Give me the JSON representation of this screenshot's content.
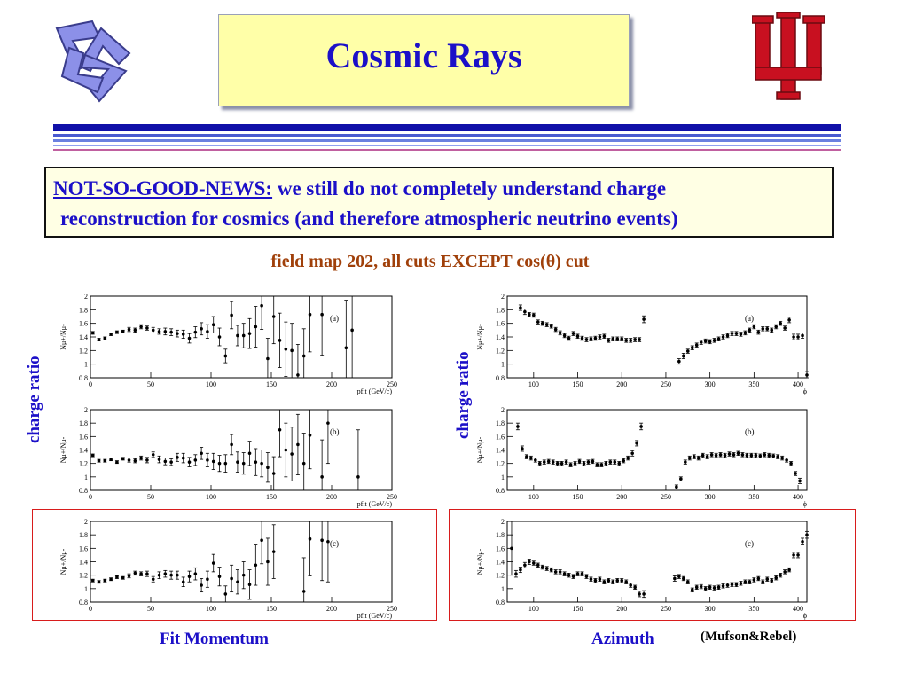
{
  "title": "Cosmic Rays",
  "colors": {
    "title_blue": "#1c10c8",
    "subtitle_brown": "#a0400a",
    "title_box": "#ffffa8",
    "iu_red": "#c81020",
    "frame_red": "#d81c1c"
  },
  "logos": {
    "left": "blue-twisted-triangle-icon",
    "right": "iu-trident-logo"
  },
  "news": {
    "heading": "NOT-SO-GOOD-NEWS:",
    "line1": "we still do not completely understand charge",
    "line2": "reconstruction for cosmics (and therefore atmospheric neutrino events)"
  },
  "subtitle": "field map 202, all cuts EXCEPT cos(θ) cut",
  "left_column": {
    "side_label": "charge ratio",
    "caption": "Fit Momentum"
  },
  "right_column": {
    "side_label": "charge ratio",
    "caption": "Azimuth"
  },
  "credit": "(Mufson&Rebel)",
  "chart_data": [
    {
      "type": "scatter",
      "panel": "(a)",
      "ylabel": "Nμ+/Nμ-",
      "xlabel": "pfit (GeV/c)",
      "xlim": [
        0,
        250
      ],
      "ylim": [
        0.8,
        2
      ],
      "xticks": [
        0,
        50,
        100,
        150,
        200,
        250
      ],
      "yticks": [
        0.8,
        1,
        1.2,
        1.4,
        1.6,
        1.8,
        2
      ],
      "x": [
        2,
        7,
        12,
        17,
        22,
        27,
        32,
        37,
        42,
        47,
        52,
        57,
        62,
        67,
        72,
        77,
        82,
        87,
        92,
        97,
        102,
        107,
        112,
        117,
        122,
        127,
        132,
        137,
        142,
        147,
        152,
        157,
        162,
        167,
        172,
        177,
        182,
        192,
        212,
        217
      ],
      "y": [
        1.46,
        1.36,
        1.38,
        1.44,
        1.47,
        1.48,
        1.51,
        1.5,
        1.55,
        1.53,
        1.5,
        1.48,
        1.48,
        1.47,
        1.45,
        1.44,
        1.38,
        1.47,
        1.52,
        1.48,
        1.58,
        1.4,
        1.12,
        1.72,
        1.42,
        1.42,
        1.45,
        1.55,
        1.86,
        1.08,
        1.7,
        1.35,
        1.22,
        1.2,
        0.84,
        1.12,
        1.73,
        1.73,
        1.24,
        1.5
      ],
      "err": [
        0.02,
        0.02,
        0.02,
        0.02,
        0.02,
        0.02,
        0.03,
        0.03,
        0.03,
        0.03,
        0.04,
        0.04,
        0.05,
        0.05,
        0.05,
        0.06,
        0.07,
        0.08,
        0.09,
        0.1,
        0.12,
        0.13,
        0.1,
        0.2,
        0.15,
        0.18,
        0.22,
        0.3,
        0.35,
        0.3,
        0.4,
        0.4,
        0.4,
        0.4,
        0.45,
        0.4,
        0.55,
        0.6,
        0.7,
        0.7
      ]
    },
    {
      "type": "scatter",
      "panel": "(b)",
      "ylabel": "Nμ+/Nμ-",
      "xlabel": "pfit (GeV/c)",
      "xlim": [
        0,
        250
      ],
      "ylim": [
        0.8,
        2
      ],
      "xticks": [
        0,
        50,
        100,
        150,
        200,
        250
      ],
      "yticks": [
        0.8,
        1,
        1.2,
        1.4,
        1.6,
        1.8,
        2
      ],
      "x": [
        2,
        7,
        12,
        17,
        22,
        27,
        32,
        37,
        42,
        47,
        52,
        57,
        62,
        67,
        72,
        77,
        82,
        87,
        92,
        97,
        102,
        107,
        112,
        117,
        122,
        127,
        132,
        137,
        142,
        147,
        152,
        157,
        162,
        167,
        172,
        177,
        182,
        192,
        197,
        222
      ],
      "y": [
        1.32,
        1.24,
        1.24,
        1.26,
        1.22,
        1.27,
        1.25,
        1.24,
        1.28,
        1.25,
        1.33,
        1.26,
        1.23,
        1.22,
        1.29,
        1.28,
        1.22,
        1.25,
        1.35,
        1.25,
        1.23,
        1.2,
        1.2,
        1.48,
        1.22,
        1.2,
        1.35,
        1.22,
        1.2,
        1.14,
        1.05,
        1.7,
        1.4,
        1.34,
        1.48,
        1.2,
        1.62,
        1.0,
        1.8,
        1.0
      ],
      "err": [
        0.02,
        0.02,
        0.02,
        0.02,
        0.02,
        0.02,
        0.03,
        0.03,
        0.03,
        0.04,
        0.04,
        0.05,
        0.05,
        0.05,
        0.06,
        0.07,
        0.07,
        0.08,
        0.09,
        0.1,
        0.12,
        0.12,
        0.13,
        0.15,
        0.15,
        0.16,
        0.18,
        0.2,
        0.2,
        0.22,
        0.25,
        0.4,
        0.4,
        0.4,
        0.45,
        0.45,
        0.5,
        0.55,
        0.6,
        0.7
      ]
    },
    {
      "type": "scatter",
      "panel": "(c)",
      "ylabel": "Nμ+/Nμ-",
      "xlabel": "pfit (GeV/c)",
      "xlim": [
        0,
        250
      ],
      "ylim": [
        0.8,
        2
      ],
      "xticks": [
        0,
        50,
        100,
        150,
        200,
        250
      ],
      "yticks": [
        0.8,
        1,
        1.2,
        1.4,
        1.6,
        1.8,
        2
      ],
      "x": [
        2,
        7,
        12,
        17,
        22,
        27,
        32,
        37,
        42,
        47,
        52,
        57,
        62,
        67,
        72,
        77,
        82,
        87,
        92,
        97,
        102,
        107,
        112,
        117,
        122,
        127,
        132,
        137,
        142,
        147,
        152,
        177,
        182,
        192,
        197
      ],
      "y": [
        1.12,
        1.1,
        1.12,
        1.14,
        1.17,
        1.16,
        1.19,
        1.23,
        1.22,
        1.22,
        1.14,
        1.2,
        1.22,
        1.2,
        1.2,
        1.1,
        1.18,
        1.22,
        1.05,
        1.14,
        1.38,
        1.18,
        0.92,
        1.15,
        1.1,
        1.2,
        1.06,
        1.35,
        1.72,
        1.4,
        1.55,
        0.96,
        1.74,
        1.72,
        1.7
      ],
      "err": [
        0.02,
        0.02,
        0.02,
        0.02,
        0.02,
        0.02,
        0.03,
        0.03,
        0.03,
        0.04,
        0.04,
        0.05,
        0.05,
        0.06,
        0.06,
        0.07,
        0.08,
        0.09,
        0.1,
        0.12,
        0.13,
        0.14,
        0.12,
        0.2,
        0.18,
        0.2,
        0.22,
        0.3,
        0.35,
        0.35,
        0.4,
        0.5,
        0.55,
        0.6,
        0.6
      ]
    },
    {
      "type": "scatter",
      "panel": "(a)",
      "ylabel": "Nμ+/Nμ-",
      "xlabel": "ϕ",
      "xlim": [
        70,
        410
      ],
      "ylim": [
        0.8,
        2
      ],
      "xticks": [
        100,
        150,
        200,
        250,
        300,
        350,
        400
      ],
      "yticks": [
        0.8,
        1,
        1.2,
        1.4,
        1.6,
        1.8,
        2
      ],
      "x": [
        85,
        90,
        95,
        100,
        105,
        110,
        115,
        120,
        125,
        130,
        135,
        140,
        145,
        150,
        155,
        160,
        165,
        170,
        175,
        180,
        185,
        190,
        195,
        200,
        205,
        210,
        215,
        220,
        225,
        265,
        270,
        275,
        280,
        285,
        290,
        295,
        300,
        305,
        310,
        315,
        320,
        325,
        330,
        335,
        340,
        345,
        350,
        355,
        360,
        365,
        370,
        375,
        380,
        385,
        390,
        395,
        400,
        405,
        410
      ],
      "y": [
        1.83,
        1.77,
        1.73,
        1.72,
        1.62,
        1.6,
        1.58,
        1.56,
        1.51,
        1.46,
        1.42,
        1.38,
        1.45,
        1.41,
        1.38,
        1.36,
        1.37,
        1.38,
        1.4,
        1.41,
        1.35,
        1.37,
        1.37,
        1.37,
        1.35,
        1.35,
        1.36,
        1.36,
        1.66,
        1.04,
        1.12,
        1.19,
        1.24,
        1.28,
        1.32,
        1.34,
        1.33,
        1.35,
        1.37,
        1.4,
        1.42,
        1.45,
        1.45,
        1.44,
        1.46,
        1.5,
        1.55,
        1.47,
        1.52,
        1.52,
        1.5,
        1.55,
        1.6,
        1.53,
        1.65,
        1.4,
        1.4,
        1.42,
        0.84
      ],
      "err": [
        0.04,
        0.04,
        0.03,
        0.03,
        0.03,
        0.03,
        0.03,
        0.03,
        0.03,
        0.03,
        0.03,
        0.03,
        0.03,
        0.03,
        0.03,
        0.03,
        0.03,
        0.03,
        0.03,
        0.03,
        0.03,
        0.03,
        0.03,
        0.03,
        0.03,
        0.03,
        0.03,
        0.03,
        0.05,
        0.04,
        0.04,
        0.03,
        0.03,
        0.03,
        0.03,
        0.03,
        0.03,
        0.03,
        0.03,
        0.03,
        0.03,
        0.03,
        0.03,
        0.03,
        0.03,
        0.03,
        0.03,
        0.03,
        0.03,
        0.03,
        0.03,
        0.03,
        0.03,
        0.03,
        0.04,
        0.04,
        0.04,
        0.04,
        0.05
      ]
    },
    {
      "type": "scatter",
      "panel": "(b)",
      "ylabel": "Nμ+/Nμ-",
      "xlabel": "ϕ",
      "xlim": [
        70,
        410
      ],
      "ylim": [
        0.8,
        2
      ],
      "xticks": [
        100,
        150,
        200,
        250,
        300,
        350,
        400
      ],
      "yticks": [
        0.8,
        1,
        1.2,
        1.4,
        1.6,
        1.8,
        2
      ],
      "x": [
        82,
        87,
        92,
        97,
        102,
        107,
        112,
        117,
        122,
        127,
        132,
        137,
        142,
        147,
        152,
        157,
        162,
        167,
        172,
        177,
        182,
        187,
        192,
        197,
        202,
        207,
        212,
        217,
        222,
        262,
        267,
        272,
        277,
        282,
        287,
        292,
        297,
        302,
        307,
        312,
        317,
        322,
        327,
        332,
        337,
        342,
        347,
        352,
        357,
        362,
        367,
        372,
        377,
        382,
        387,
        392,
        397,
        402
      ],
      "y": [
        1.75,
        1.42,
        1.3,
        1.28,
        1.25,
        1.2,
        1.22,
        1.23,
        1.22,
        1.2,
        1.2,
        1.22,
        1.18,
        1.2,
        1.23,
        1.2,
        1.22,
        1.23,
        1.18,
        1.18,
        1.2,
        1.22,
        1.22,
        1.2,
        1.24,
        1.28,
        1.35,
        1.5,
        1.75,
        0.85,
        0.97,
        1.22,
        1.28,
        1.3,
        1.28,
        1.32,
        1.3,
        1.33,
        1.32,
        1.33,
        1.32,
        1.34,
        1.33,
        1.35,
        1.33,
        1.32,
        1.32,
        1.32,
        1.31,
        1.33,
        1.32,
        1.31,
        1.3,
        1.28,
        1.25,
        1.2,
        1.05,
        0.94
      ],
      "err": [
        0.05,
        0.04,
        0.03,
        0.03,
        0.03,
        0.03,
        0.03,
        0.03,
        0.03,
        0.03,
        0.03,
        0.03,
        0.03,
        0.03,
        0.03,
        0.03,
        0.03,
        0.03,
        0.03,
        0.03,
        0.03,
        0.03,
        0.03,
        0.03,
        0.03,
        0.03,
        0.04,
        0.04,
        0.05,
        0.03,
        0.03,
        0.03,
        0.03,
        0.03,
        0.03,
        0.03,
        0.03,
        0.03,
        0.03,
        0.03,
        0.03,
        0.03,
        0.03,
        0.03,
        0.03,
        0.03,
        0.03,
        0.03,
        0.03,
        0.03,
        0.03,
        0.03,
        0.03,
        0.03,
        0.03,
        0.03,
        0.03,
        0.04
      ]
    },
    {
      "type": "scatter",
      "panel": "(c)",
      "ylabel": "Nμ+/Nμ-",
      "xlabel": "ϕ",
      "xlim": [
        70,
        410
      ],
      "ylim": [
        0.8,
        2
      ],
      "xticks": [
        100,
        150,
        200,
        250,
        300,
        350,
        400
      ],
      "yticks": [
        0.8,
        1,
        1.2,
        1.4,
        1.6,
        1.8,
        2
      ],
      "x": [
        75,
        80,
        85,
        90,
        95,
        100,
        105,
        110,
        115,
        120,
        125,
        130,
        135,
        140,
        145,
        150,
        155,
        160,
        165,
        170,
        175,
        180,
        185,
        190,
        195,
        200,
        205,
        210,
        215,
        220,
        225,
        260,
        265,
        270,
        275,
        280,
        285,
        290,
        295,
        300,
        305,
        310,
        315,
        320,
        325,
        330,
        335,
        340,
        345,
        350,
        355,
        360,
        365,
        370,
        375,
        380,
        385,
        390,
        395,
        400,
        405,
        410
      ],
      "y": [
        1.6,
        1.22,
        1.28,
        1.35,
        1.4,
        1.38,
        1.35,
        1.32,
        1.3,
        1.28,
        1.25,
        1.25,
        1.22,
        1.2,
        1.18,
        1.22,
        1.22,
        1.18,
        1.14,
        1.12,
        1.14,
        1.1,
        1.12,
        1.1,
        1.12,
        1.12,
        1.1,
        1.05,
        1.02,
        0.92,
        0.92,
        1.15,
        1.18,
        1.15,
        1.1,
        0.98,
        1.02,
        1.03,
        1.0,
        1.02,
        1.01,
        1.02,
        1.04,
        1.05,
        1.06,
        1.06,
        1.08,
        1.1,
        1.1,
        1.13,
        1.15,
        1.1,
        1.14,
        1.12,
        1.16,
        1.2,
        1.25,
        1.28,
        1.5,
        1.5,
        1.7,
        1.8
      ],
      "err": [
        0.4,
        0.05,
        0.04,
        0.04,
        0.04,
        0.03,
        0.03,
        0.03,
        0.03,
        0.03,
        0.03,
        0.03,
        0.03,
        0.03,
        0.03,
        0.03,
        0.03,
        0.03,
        0.03,
        0.03,
        0.03,
        0.03,
        0.03,
        0.03,
        0.03,
        0.03,
        0.03,
        0.03,
        0.03,
        0.04,
        0.05,
        0.04,
        0.03,
        0.03,
        0.03,
        0.03,
        0.03,
        0.03,
        0.03,
        0.03,
        0.03,
        0.03,
        0.03,
        0.03,
        0.03,
        0.03,
        0.03,
        0.03,
        0.03,
        0.03,
        0.03,
        0.03,
        0.03,
        0.03,
        0.03,
        0.03,
        0.03,
        0.03,
        0.04,
        0.04,
        0.05,
        0.05
      ]
    }
  ]
}
